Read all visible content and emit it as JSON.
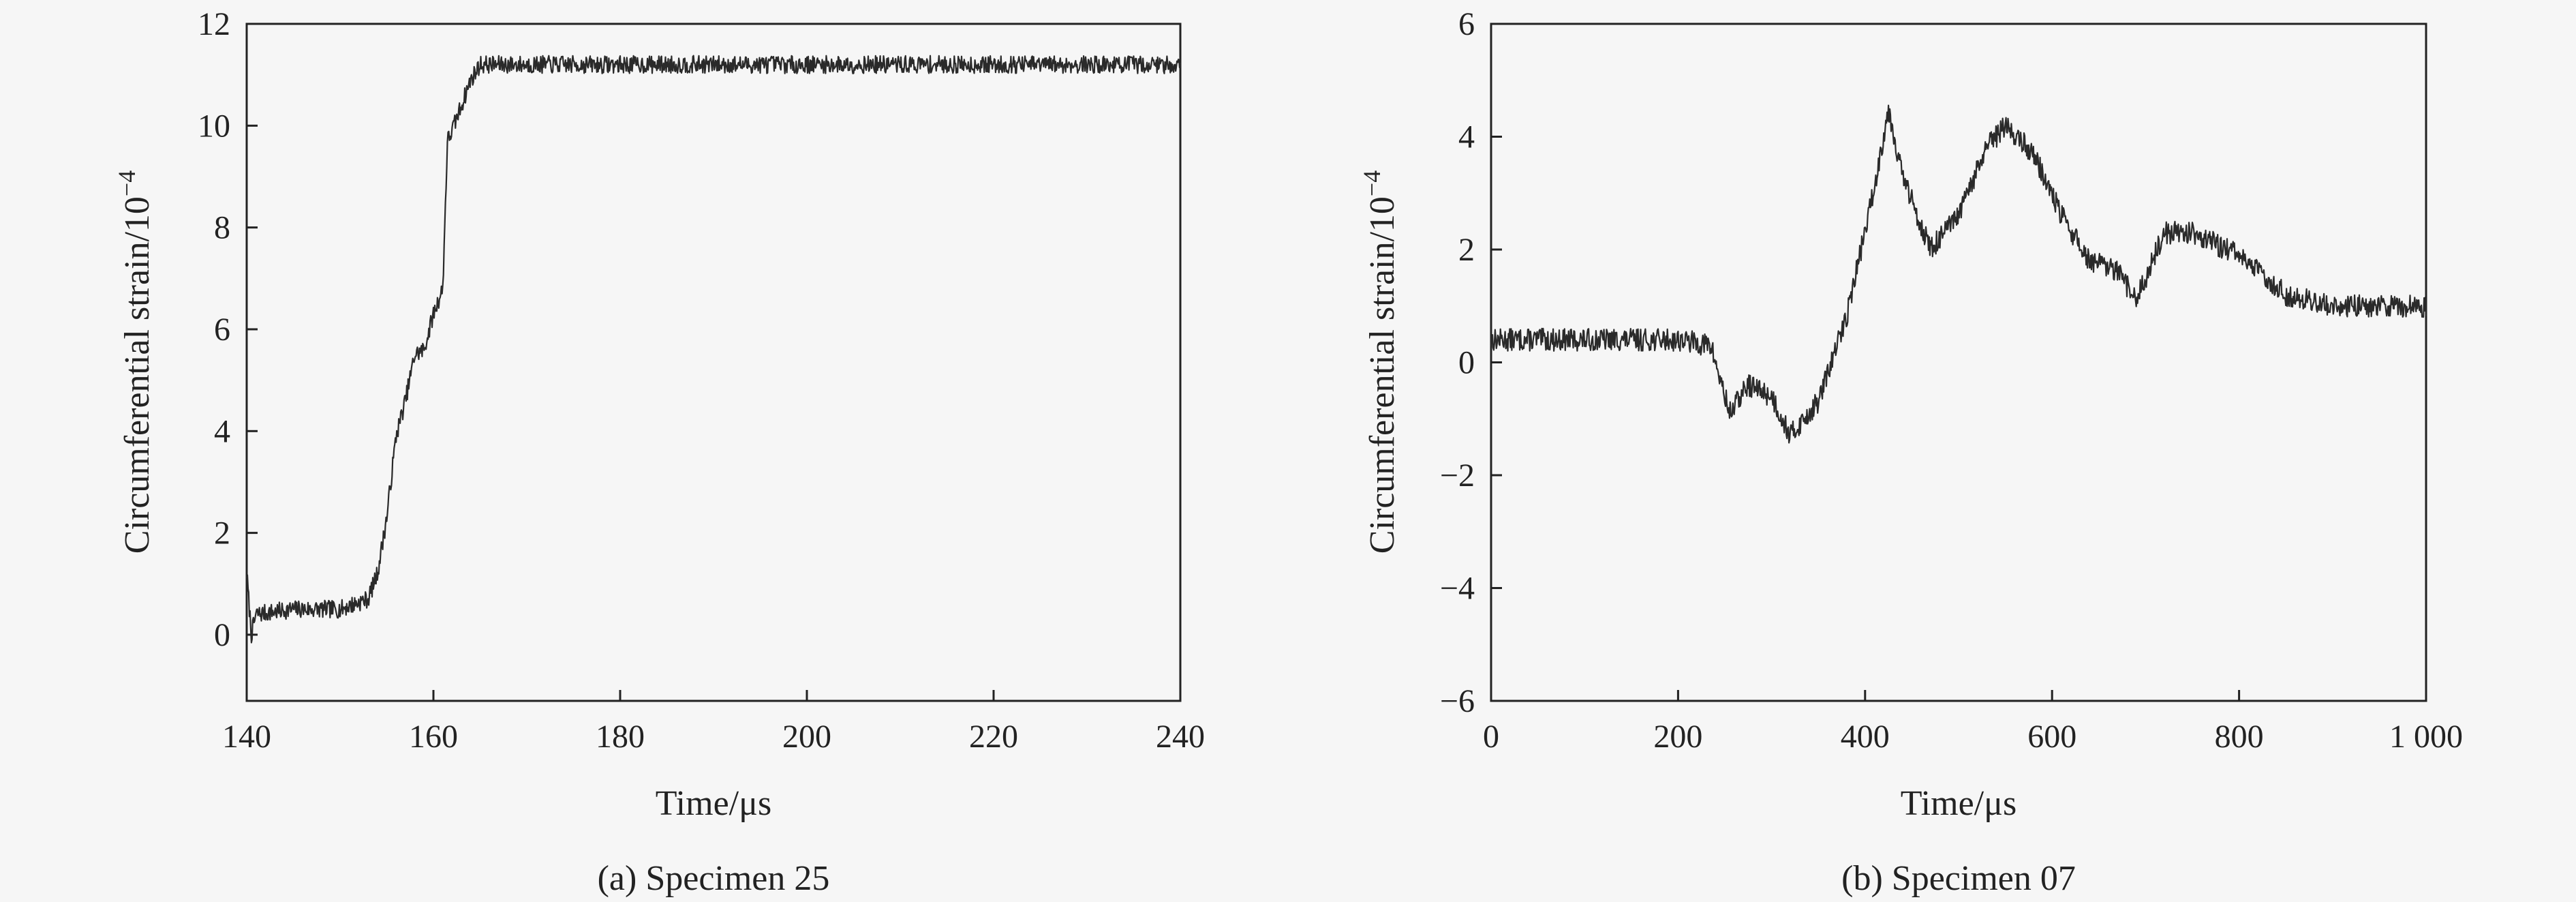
{
  "chart_data": [
    {
      "type": "line",
      "caption": "(a) Specimen 25",
      "xlabel": "Time/μs",
      "ylabel_main": "Circumferential strain/10",
      "ylabel_sup": "−4",
      "xlim": [
        140,
        240
      ],
      "ylim": [
        -1.3,
        12
      ],
      "xticks": [
        140,
        160,
        180,
        200,
        220,
        240
      ],
      "xtick_labels": [
        "140",
        "160",
        "180",
        "200",
        "220",
        "240"
      ],
      "yticks": [
        0,
        2,
        4,
        6,
        8,
        10,
        12
      ],
      "ytick_labels": [
        "0",
        "2",
        "4",
        "6",
        "8",
        "10",
        "12"
      ],
      "grid": false,
      "noise": 0.35,
      "series": [
        {
          "x": [
            140,
            140.5,
            141,
            145,
            150,
            153,
            154,
            155,
            156,
            157,
            158,
            159,
            160,
            161,
            161.5,
            162,
            163,
            164,
            165,
            166,
            170,
            180,
            190,
            200,
            210,
            220,
            230,
            240
          ],
          "y": [
            1.2,
            0.0,
            0.4,
            0.5,
            0.5,
            0.7,
            1.2,
            2.3,
            3.9,
            4.6,
            5.5,
            5.6,
            6.3,
            6.8,
            9.7,
            9.9,
            10.4,
            10.9,
            11.2,
            11.2,
            11.2,
            11.2,
            11.2,
            11.2,
            11.2,
            11.2,
            11.2,
            11.2
          ]
        }
      ]
    },
    {
      "type": "line",
      "caption": "(b) Specimen 07",
      "xlabel": "Time/μs",
      "ylabel_main": "Circumferential strain/10",
      "ylabel_sup": "−4",
      "xlim": [
        0,
        1000
      ],
      "ylim": [
        -6,
        6
      ],
      "xticks": [
        0,
        200,
        400,
        600,
        800,
        1000
      ],
      "xtick_labels": [
        "0",
        "200",
        "400",
        "600",
        "800",
        "1 000"
      ],
      "yticks": [
        -6,
        -4,
        -2,
        0,
        2,
        4,
        6
      ],
      "ytick_labels": [
        "−6",
        "−4",
        "−2",
        "0",
        "2",
        "4",
        "6"
      ],
      "grid": false,
      "noise": 0.4,
      "series": [
        {
          "x": [
            0,
            100,
            200,
            235,
            255,
            275,
            300,
            320,
            350,
            380,
            410,
            425,
            440,
            470,
            500,
            530,
            550,
            580,
            610,
            640,
            670,
            690,
            720,
            750,
            800,
            850,
            900,
            950,
            1000
          ],
          "y": [
            0.4,
            0.4,
            0.4,
            0.3,
            -0.9,
            -0.4,
            -0.6,
            -1.3,
            -0.7,
            0.8,
            3.1,
            4.5,
            3.3,
            2.0,
            2.6,
            3.8,
            4.2,
            3.7,
            2.6,
            1.8,
            1.6,
            1.1,
            2.3,
            2.3,
            1.9,
            1.2,
            1.0,
            1.0,
            1.0
          ]
        }
      ]
    }
  ]
}
